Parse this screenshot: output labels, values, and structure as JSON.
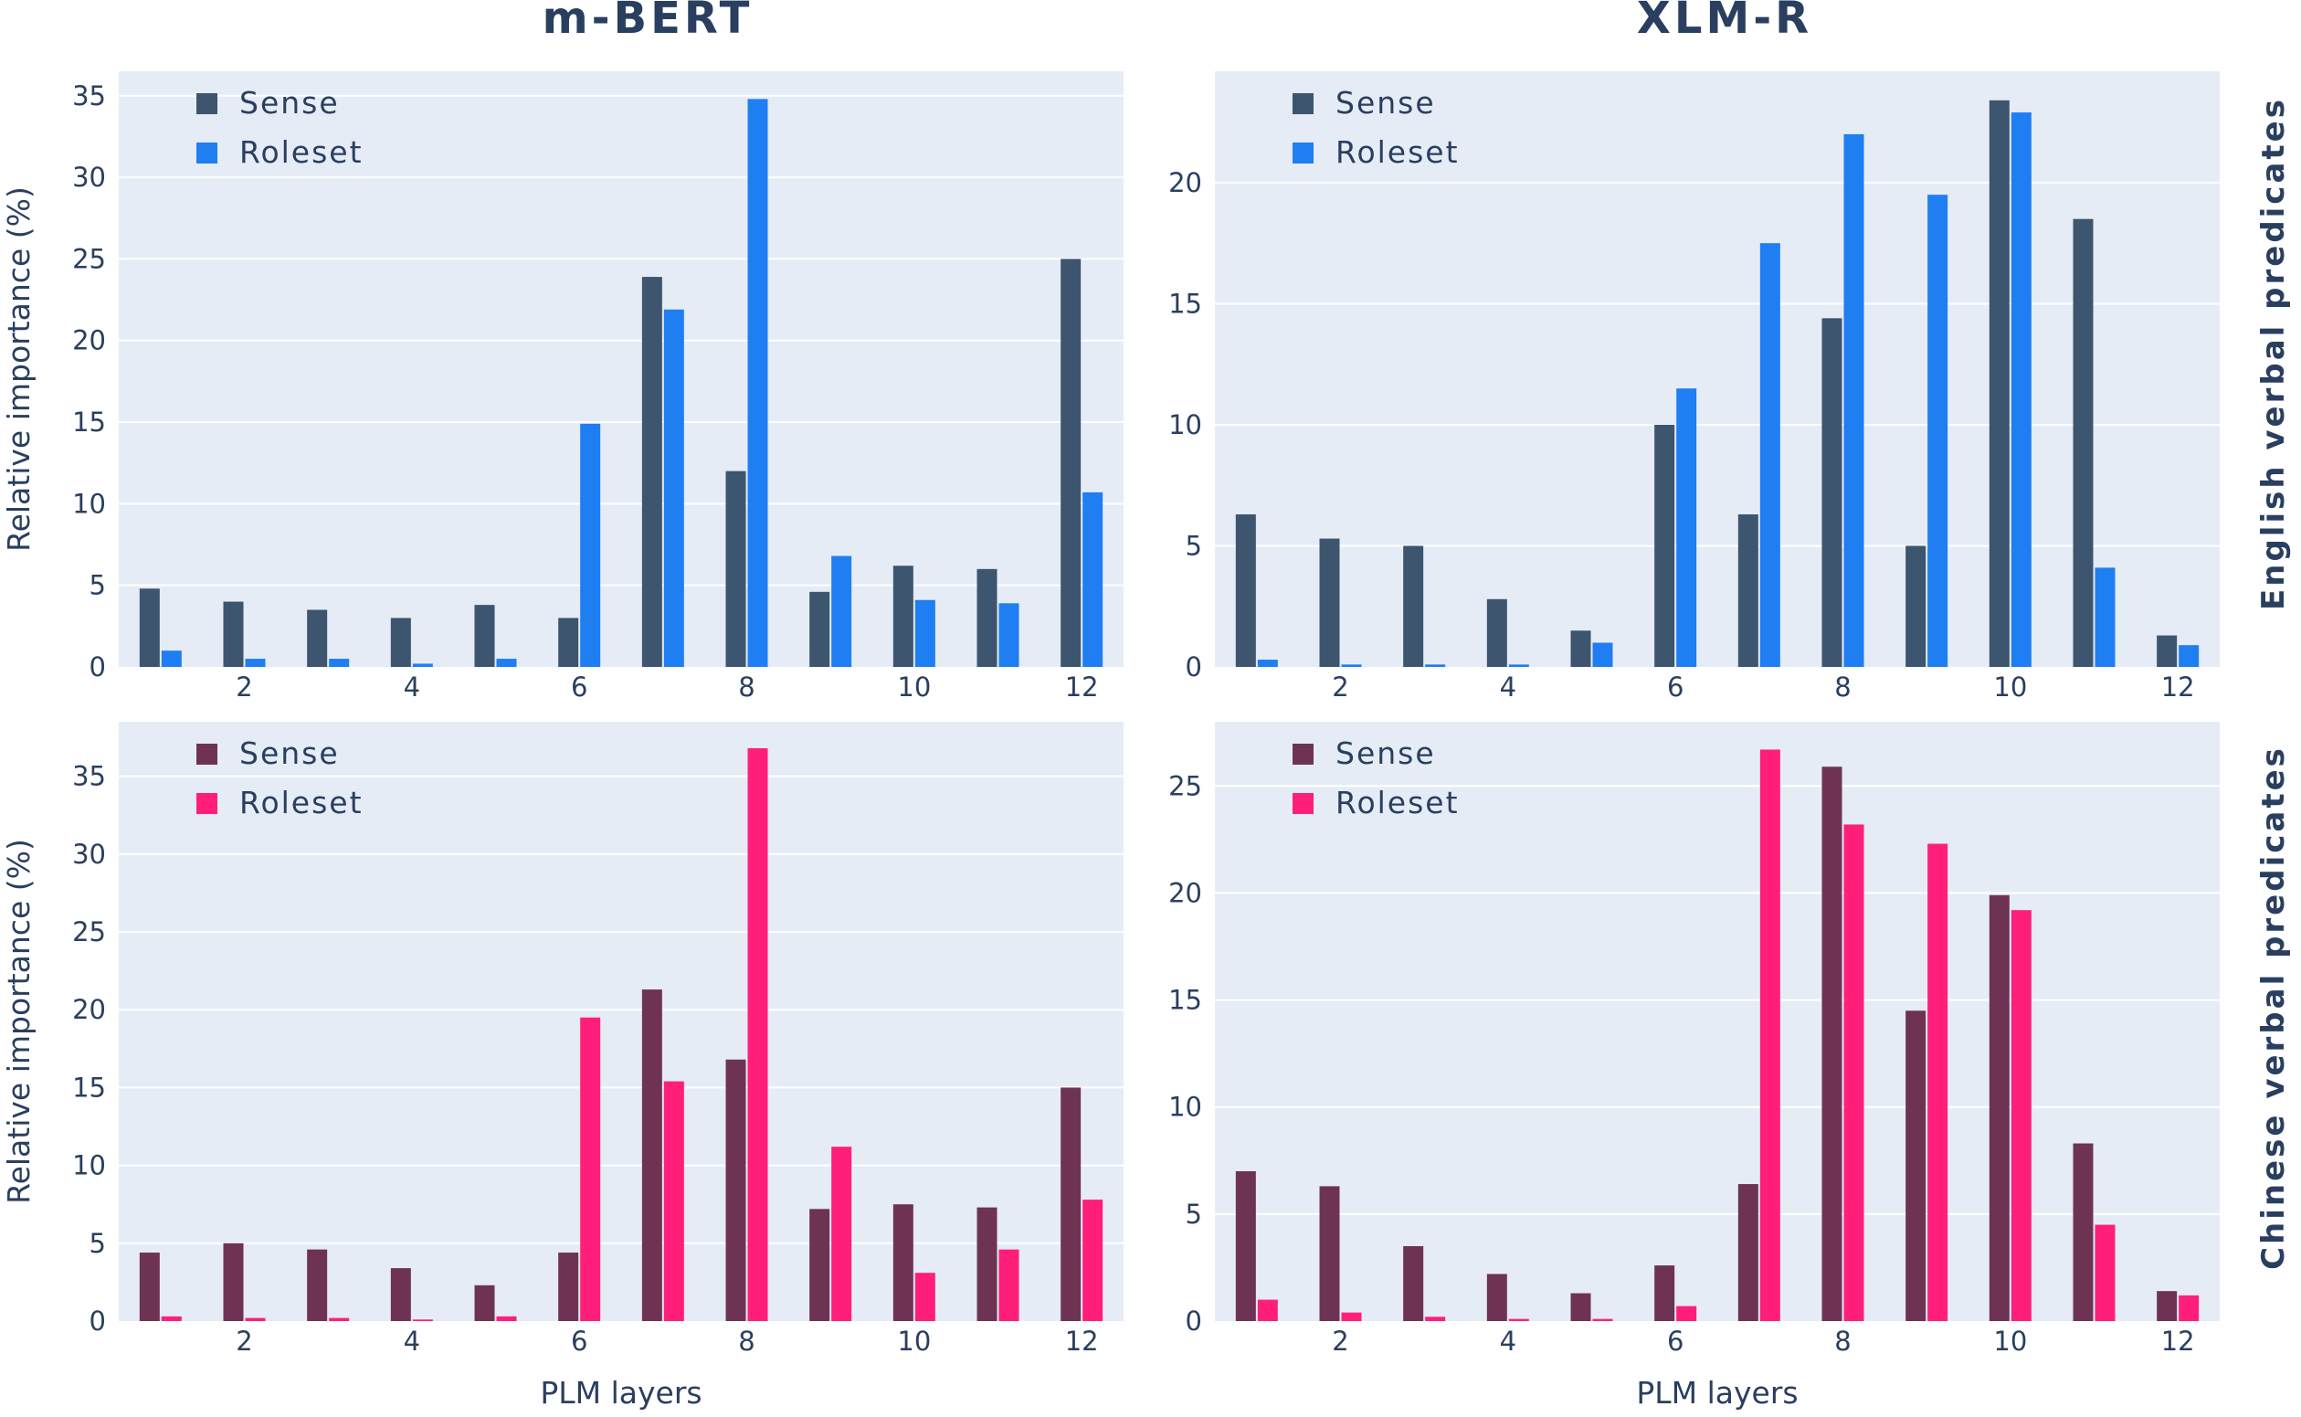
{
  "column_titles": [
    "m-BERT",
    "XLM-R"
  ],
  "row_titles": [
    "English verbal predicates",
    "Chinese verbal predicates"
  ],
  "colors": {
    "english_sense": "#3d556f",
    "english_roleset": "#1f7ef2",
    "chinese_sense": "#6e3353",
    "chinese_roleset": "#ff1f7a"
  },
  "chart_data": [
    {
      "type": "bar",
      "model": "m-BERT",
      "language": "English verbal predicates",
      "ylabel": "Relative importance (%)",
      "xlabel": "",
      "x": [
        1,
        2,
        3,
        4,
        5,
        6,
        7,
        8,
        9,
        10,
        11,
        12
      ],
      "xticks": [
        2,
        4,
        6,
        8,
        10,
        12
      ],
      "yticks": [
        0,
        5,
        10,
        15,
        20,
        25,
        30,
        35
      ],
      "ylim": [
        0,
        36.5
      ],
      "grid": true,
      "legend_position": "top-left",
      "series": [
        {
          "name": "Sense",
          "color": "#3d556f",
          "values": [
            4.8,
            4.0,
            3.5,
            3.0,
            3.8,
            3.0,
            23.9,
            12.0,
            4.6,
            6.2,
            6.0,
            25.0
          ]
        },
        {
          "name": "Roleset",
          "color": "#1f7ef2",
          "values": [
            1.0,
            0.5,
            0.5,
            0.2,
            0.5,
            14.9,
            21.9,
            34.8,
            6.8,
            4.1,
            3.9,
            10.7
          ]
        }
      ]
    },
    {
      "type": "bar",
      "model": "XLM-R",
      "language": "English verbal predicates",
      "ylabel": "",
      "xlabel": "",
      "x": [
        1,
        2,
        3,
        4,
        5,
        6,
        7,
        8,
        9,
        10,
        11,
        12
      ],
      "xticks": [
        2,
        4,
        6,
        8,
        10,
        12
      ],
      "yticks": [
        0,
        5,
        10,
        15,
        20
      ],
      "ylim": [
        0,
        24.6
      ],
      "grid": true,
      "legend_position": "top-left",
      "series": [
        {
          "name": "Sense",
          "color": "#3d556f",
          "values": [
            6.3,
            5.3,
            5.0,
            2.8,
            1.5,
            10.0,
            6.3,
            14.4,
            5.0,
            23.4,
            18.5,
            1.3
          ]
        },
        {
          "name": "Roleset",
          "color": "#1f7ef2",
          "values": [
            0.3,
            0.1,
            0.1,
            0.1,
            1.0,
            11.5,
            17.5,
            22.0,
            19.5,
            22.9,
            4.1,
            0.9
          ]
        }
      ]
    },
    {
      "type": "bar",
      "model": "m-BERT",
      "language": "Chinese verbal predicates",
      "ylabel": "Relative importance (%)",
      "xlabel": "PLM layers",
      "x": [
        1,
        2,
        3,
        4,
        5,
        6,
        7,
        8,
        9,
        10,
        11,
        12
      ],
      "xticks": [
        2,
        4,
        6,
        8,
        10,
        12
      ],
      "yticks": [
        0,
        5,
        10,
        15,
        20,
        25,
        30,
        35
      ],
      "ylim": [
        0,
        38.5
      ],
      "grid": true,
      "legend_position": "top-left",
      "series": [
        {
          "name": "Sense",
          "color": "#6e3353",
          "values": [
            4.4,
            5.0,
            4.6,
            3.4,
            2.3,
            4.4,
            21.3,
            16.8,
            7.2,
            7.5,
            7.3,
            15.0
          ]
        },
        {
          "name": "Roleset",
          "color": "#ff1f7a",
          "values": [
            0.3,
            0.2,
            0.2,
            0.1,
            0.3,
            19.5,
            15.4,
            36.8,
            11.2,
            3.1,
            4.6,
            7.8
          ]
        }
      ]
    },
    {
      "type": "bar",
      "model": "XLM-R",
      "language": "Chinese verbal predicates",
      "ylabel": "",
      "xlabel": "PLM layers",
      "x": [
        1,
        2,
        3,
        4,
        5,
        6,
        7,
        8,
        9,
        10,
        11,
        12
      ],
      "xticks": [
        2,
        4,
        6,
        8,
        10,
        12
      ],
      "yticks": [
        0,
        5,
        10,
        15,
        20,
        25
      ],
      "ylim": [
        0,
        28.0
      ],
      "grid": true,
      "legend_position": "top-left",
      "series": [
        {
          "name": "Sense",
          "color": "#6e3353",
          "values": [
            7.0,
            6.3,
            3.5,
            2.2,
            1.3,
            2.6,
            6.4,
            25.9,
            14.5,
            19.9,
            8.3,
            1.4
          ]
        },
        {
          "name": "Roleset",
          "color": "#ff1f7a",
          "values": [
            1.0,
            0.4,
            0.2,
            0.1,
            0.1,
            0.7,
            26.7,
            23.2,
            22.3,
            19.2,
            4.5,
            1.2
          ]
        }
      ]
    }
  ]
}
